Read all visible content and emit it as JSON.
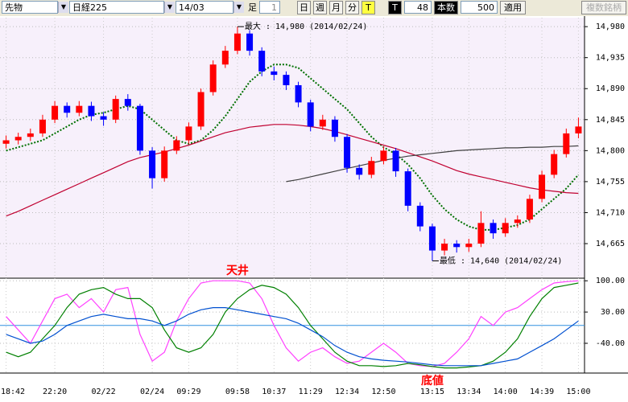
{
  "toolbar": {
    "market": "先物",
    "index": "日経225",
    "contract": "14/03",
    "bar_label": "足",
    "bar_size": "1",
    "day": "日",
    "week": "週",
    "month": "月",
    "minute": "分",
    "tick": "T",
    "t_label": "T",
    "t_value": "48",
    "count_label": "本数",
    "count_value": "500",
    "apply": "適用",
    "multi": "複数銘柄"
  },
  "chart_data": [
    {
      "type": "candlestick",
      "categories": [
        "18:42",
        null,
        null,
        null,
        "22:20",
        null,
        null,
        null,
        "02/22",
        null,
        null,
        null,
        "02/24",
        null,
        null,
        "09:29",
        null,
        null,
        null,
        "09:58",
        null,
        null,
        "10:37",
        null,
        null,
        "11:29",
        null,
        null,
        "12:34",
        null,
        null,
        "12:50",
        null,
        null,
        null,
        "13:15",
        null,
        null,
        "13:34",
        null,
        null,
        "14:00",
        null,
        null,
        "14:39",
        null,
        null,
        "15:00"
      ],
      "open": [
        14810,
        14815,
        14820,
        14825,
        14845,
        14865,
        14855,
        14865,
        14850,
        14845,
        14875,
        14865,
        14800,
        14760,
        14800,
        14815,
        14835,
        14885,
        14925,
        14945,
        14970,
        14945,
        14915,
        14910,
        14895,
        14870,
        14835,
        14845,
        14820,
        14775,
        14765,
        14785,
        14800,
        14770,
        14720,
        14690,
        14655,
        14665,
        14660,
        14665,
        14695,
        14680,
        14695,
        14700,
        14730,
        14765,
        14795,
        14825
      ],
      "high": [
        14822,
        14826,
        14832,
        14852,
        14872,
        14870,
        14872,
        14871,
        14856,
        14880,
        14882,
        14868,
        14805,
        14806,
        14821,
        14841,
        14890,
        14931,
        14952,
        14980,
        14975,
        14950,
        14922,
        14915,
        14900,
        14874,
        14852,
        14850,
        14824,
        14780,
        14791,
        14806,
        14804,
        14774,
        14725,
        14694,
        14672,
        14670,
        14672,
        14712,
        14700,
        14702,
        14706,
        14736,
        14771,
        14801,
        14832,
        14848
      ],
      "low": [
        14803,
        14809,
        14814,
        14820,
        14840,
        14848,
        14850,
        14843,
        14836,
        14840,
        14858,
        14794,
        14745,
        14755,
        14795,
        14810,
        14830,
        14880,
        14920,
        14940,
        14938,
        14908,
        14902,
        14888,
        14863,
        14828,
        14830,
        14813,
        14768,
        14758,
        14760,
        14780,
        14762,
        14712,
        14683,
        14640,
        14648,
        14652,
        14653,
        14660,
        14672,
        14675,
        14688,
        14695,
        14725,
        14760,
        14790,
        14818
      ],
      "close": [
        14815,
        14820,
        14825,
        14845,
        14865,
        14855,
        14865,
        14850,
        14845,
        14875,
        14865,
        14800,
        14760,
        14800,
        14815,
        14835,
        14885,
        14925,
        14945,
        14970,
        14945,
        14915,
        14910,
        14895,
        14870,
        14835,
        14845,
        14820,
        14775,
        14765,
        14785,
        14800,
        14770,
        14720,
        14690,
        14655,
        14665,
        14660,
        14665,
        14695,
        14680,
        14695,
        14700,
        14730,
        14765,
        14795,
        14825,
        14835
      ],
      "up_color": "#ff0000",
      "down_color": "#0000ff",
      "series": [
        {
          "color": "#007000",
          "dash": true,
          "values": [
            14800,
            14805,
            14810,
            14815,
            14825,
            14835,
            14845,
            14852,
            14855,
            14860,
            14865,
            14860,
            14845,
            14830,
            14815,
            14810,
            14815,
            14830,
            14850,
            14875,
            14900,
            14915,
            14925,
            14925,
            14920,
            14905,
            14890,
            14875,
            14860,
            14840,
            14820,
            14805,
            14795,
            14780,
            14760,
            14735,
            14715,
            14700,
            14690,
            14685,
            14685,
            14688,
            14692,
            14700,
            14715,
            14730,
            14745,
            14765
          ]
        },
        {
          "color": "#c00030",
          "values": [
            14705,
            14712,
            14720,
            14728,
            14736,
            14744,
            14752,
            14760,
            14768,
            14776,
            14784,
            14790,
            14794,
            14798,
            14803,
            14808,
            14814,
            14820,
            14826,
            14830,
            14834,
            14836,
            14838,
            14838,
            14837,
            14835,
            14832,
            14828,
            14823,
            14818,
            14813,
            14808,
            14803,
            14797,
            14791,
            14785,
            14778,
            14771,
            14766,
            14762,
            14758,
            14754,
            14750,
            14746,
            14743,
            14741,
            14739,
            14738
          ]
        },
        {
          "color": "#404040",
          "values": [
            null,
            null,
            null,
            null,
            null,
            null,
            null,
            null,
            null,
            null,
            null,
            null,
            null,
            null,
            null,
            null,
            null,
            null,
            null,
            null,
            null,
            null,
            null,
            14755,
            14758,
            14762,
            14766,
            14770,
            14774,
            14778,
            14782,
            14786,
            14789,
            14792,
            14794,
            14796,
            14798,
            14800,
            14801,
            14802,
            14803,
            14804,
            14804,
            14805,
            14805,
            14806,
            14806,
            14807
          ]
        }
      ],
      "ylim": [
        14616,
        14993
      ],
      "yticks": [
        {
          "value": 14980,
          "label": "14,980"
        },
        {
          "value": 14935,
          "label": "14,935"
        },
        {
          "value": 14890,
          "label": "14,890"
        },
        {
          "value": 14845,
          "label": "14,845"
        },
        {
          "value": 14800,
          "label": "14,800"
        },
        {
          "value": 14755,
          "label": "14,755"
        },
        {
          "value": 14710,
          "label": "14,710"
        },
        {
          "value": 14665,
          "label": "14,665"
        }
      ],
      "annotations": [
        {
          "text": "最大 : 14,980 (2014/02/24)",
          "index": 19,
          "value": 14980
        },
        {
          "text": "最低 : 14,640 (2014/02/24)",
          "index": 35,
          "value": 14640
        }
      ]
    },
    {
      "type": "line",
      "series": [
        {
          "color": "#ff40ff",
          "values": [
            20,
            -10,
            -40,
            10,
            60,
            70,
            40,
            60,
            30,
            80,
            85,
            -20,
            -80,
            -60,
            10,
            60,
            95,
            100,
            100,
            100,
            95,
            60,
            0,
            -50,
            -80,
            -60,
            -50,
            -70,
            -85,
            -80,
            -60,
            -40,
            -60,
            -85,
            -90,
            -92,
            -85,
            -60,
            -30,
            20,
            0,
            30,
            40,
            60,
            80,
            95,
            98,
            100
          ]
        },
        {
          "color": "#008000",
          "values": [
            -60,
            -70,
            -60,
            -30,
            0,
            40,
            70,
            80,
            85,
            70,
            60,
            60,
            40,
            -10,
            -50,
            -60,
            -50,
            -20,
            30,
            60,
            80,
            90,
            85,
            70,
            40,
            0,
            -30,
            -60,
            -80,
            -90,
            -90,
            -92,
            -90,
            -85,
            -88,
            -92,
            -95,
            -95,
            -93,
            -90,
            -80,
            -60,
            -30,
            20,
            60,
            85,
            90,
            95
          ]
        },
        {
          "color": "#0050d0",
          "values": [
            -20,
            -30,
            -40,
            -35,
            -20,
            0,
            10,
            20,
            25,
            20,
            15,
            15,
            10,
            0,
            10,
            25,
            35,
            40,
            40,
            35,
            30,
            25,
            20,
            15,
            5,
            -10,
            -25,
            -45,
            -60,
            -70,
            -75,
            -78,
            -80,
            -82,
            -85,
            -88,
            -90,
            -90,
            -90,
            -90,
            -85,
            -80,
            -75,
            -60,
            -45,
            -30,
            -10,
            10
          ]
        }
      ],
      "ylim": [
        -103,
        104
      ],
      "yticks": [
        {
          "value": 100,
          "label": "100.00"
        },
        {
          "value": 30,
          "label": "30.00"
        },
        {
          "value": -40,
          "label": "-40.00"
        }
      ],
      "ref_line": 0,
      "annotations": [
        {
          "text": "天井",
          "index": 19,
          "value": 104
        },
        {
          "text": "底値",
          "index": 35,
          "value": -103
        }
      ]
    }
  ]
}
